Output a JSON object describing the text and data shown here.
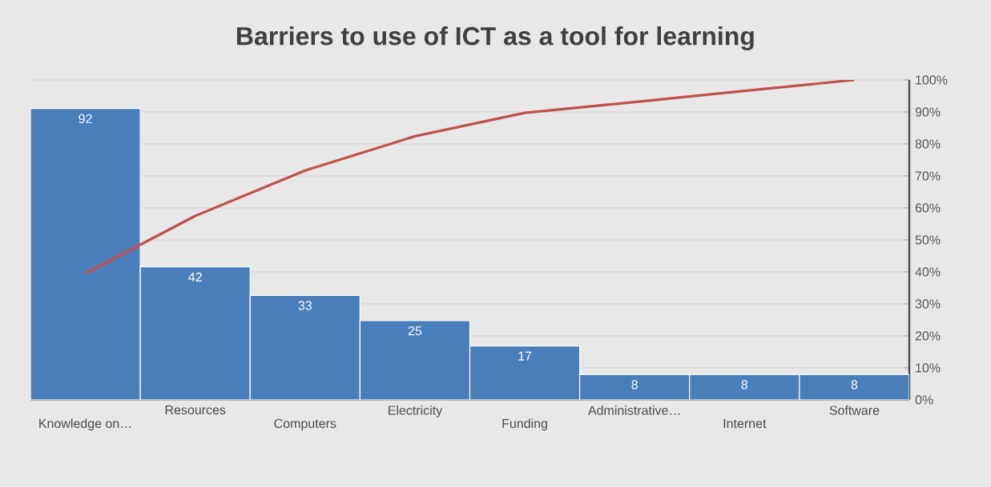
{
  "chart_data": {
    "type": "bar",
    "title": "Barriers to use of ICT as a tool for learning",
    "categories": [
      "Knowledge on…",
      "Resources",
      "Computers",
      "Electricity",
      "Funding",
      "Administrative…",
      "Internet",
      "Software"
    ],
    "ylim": [
      0,
      101
    ],
    "grid": true,
    "series": [
      {
        "color": "#4a7ebb",
        "values": [
          92,
          42,
          33,
          25,
          17,
          8,
          8,
          8
        ],
        "value_labels": [
          "92",
          "42",
          "33",
          "25",
          "17",
          "8",
          "8",
          "8"
        ]
      },
      {
        "type": "line",
        "axis": "y2",
        "color": "#c0504d",
        "values": [
          39.5,
          57.5,
          71.7,
          82.4,
          89.7,
          93.1,
          96.6,
          100
        ]
      }
    ],
    "y2lim": [
      0,
      100
    ],
    "y2ticks": [
      {
        "value": 0,
        "label": "0%"
      },
      {
        "value": 10,
        "label": "10%"
      },
      {
        "value": 20,
        "label": "20%"
      },
      {
        "value": 30,
        "label": "30%"
      },
      {
        "value": 40,
        "label": "40%"
      },
      {
        "value": 50,
        "label": "50%"
      },
      {
        "value": 60,
        "label": "60%"
      },
      {
        "value": 70,
        "label": "70%"
      },
      {
        "value": 80,
        "label": "80%"
      },
      {
        "value": 90,
        "label": "90%"
      },
      {
        "value": 100,
        "label": "100%"
      }
    ]
  }
}
